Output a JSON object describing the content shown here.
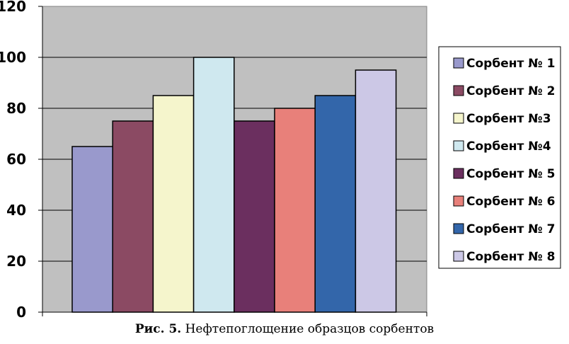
{
  "caption": {
    "label": "Рис. 5.",
    "text": "Нефтепоглощение образцов сорбентов"
  },
  "chart_data": {
    "type": "bar",
    "ylim": [
      0,
      120
    ],
    "yticks": [
      0,
      20,
      40,
      60,
      80,
      100,
      120
    ],
    "grid": true,
    "legend_position": "right",
    "plot_background": "#c0c0c0",
    "series": [
      {
        "name": "Сорбент № 1",
        "value": 65,
        "color": "#9999cc"
      },
      {
        "name": "Сорбент № 2",
        "value": 75,
        "color": "#8b4a63"
      },
      {
        "name": "Сорбент №3",
        "value": 85,
        "color": "#f5f5cc"
      },
      {
        "name": "Сорбент №4",
        "value": 100,
        "color": "#cfe8ef"
      },
      {
        "name": "Сорбент № 5",
        "value": 75,
        "color": "#6b2f5f"
      },
      {
        "name": "Сорбент № 6",
        "value": 80,
        "color": "#e8807a"
      },
      {
        "name": "Сорбент № 7",
        "value": 85,
        "color": "#3366aa"
      },
      {
        "name": "Сорбент № 8",
        "value": 95,
        "color": "#ccc8e6"
      }
    ]
  }
}
